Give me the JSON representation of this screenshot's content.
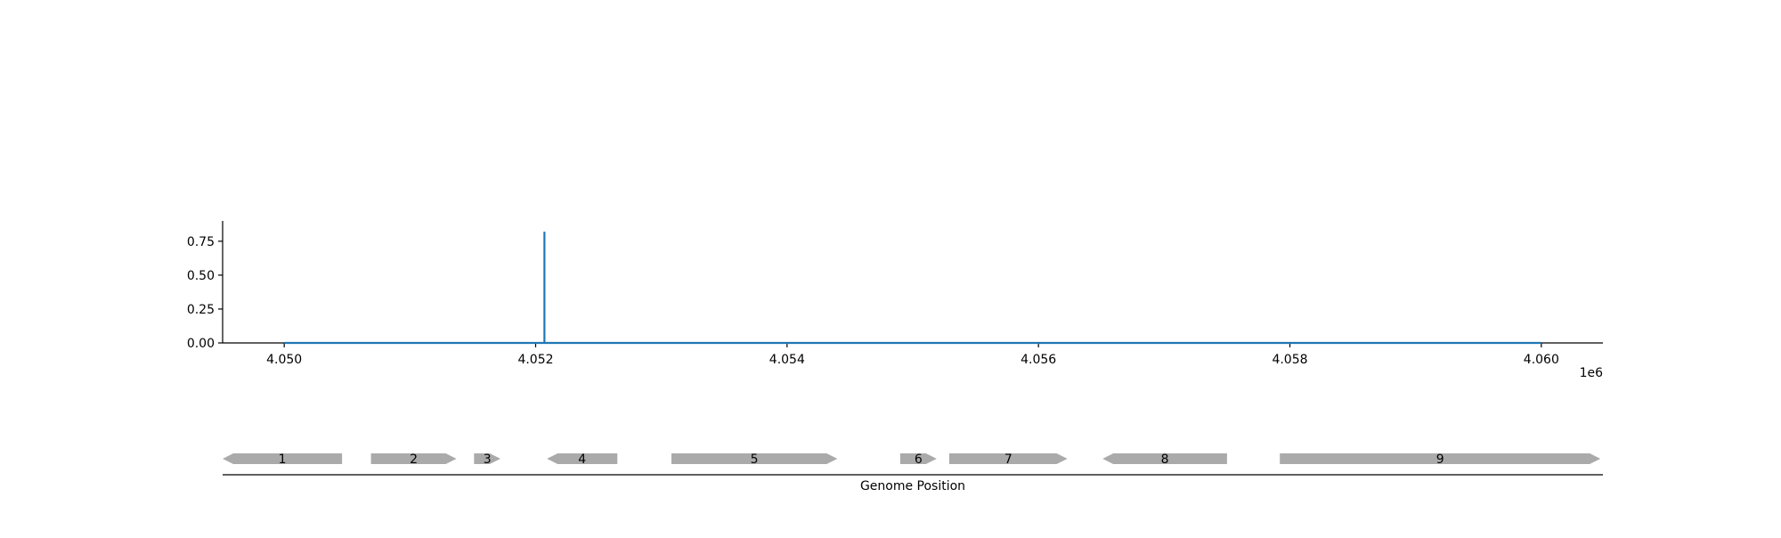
{
  "chart_data": [
    {
      "type": "line",
      "title": "",
      "xlabel": "",
      "ylabel": "",
      "x_offset_label": "1e6",
      "xlim": [
        4.04951,
        4.06049
      ],
      "ylim": [
        0.0,
        0.9
      ],
      "x_ticks": [
        4.05,
        4.052,
        4.054,
        4.056,
        4.058,
        4.06
      ],
      "x_tick_labels": [
        "4.050",
        "4.052",
        "4.054",
        "4.056",
        "4.058",
        "4.060"
      ],
      "y_ticks": [
        0.0,
        0.25,
        0.5,
        0.75
      ],
      "y_tick_labels": [
        "0.00",
        "0.25",
        "0.50",
        "0.75"
      ],
      "grid": false,
      "series": [
        {
          "color": "#1f77b4",
          "x": [
            4.05,
            4.05207,
            4.05207,
            4.05207,
            4.05208,
            4.06
          ],
          "y": [
            0.0,
            0.0,
            0.82,
            0.0,
            0.0,
            0.0
          ]
        }
      ]
    },
    {
      "type": "gene-track",
      "xlabel": "Genome Position",
      "xlim": [
        4.04951,
        4.06049
      ],
      "feature_color": "#aaaaaa",
      "features": [
        {
          "label": "1",
          "start": 4.04951,
          "end": 4.05046,
          "strand": -1
        },
        {
          "label": "2",
          "start": 4.05069,
          "end": 4.05137,
          "strand": 1
        },
        {
          "label": "3",
          "start": 4.05151,
          "end": 4.05172,
          "strand": 1
        },
        {
          "label": "4",
          "start": 4.05209,
          "end": 4.05265,
          "strand": -1
        },
        {
          "label": "5",
          "start": 4.05308,
          "end": 4.0544,
          "strand": 1
        },
        {
          "label": "6",
          "start": 4.0549,
          "end": 4.05519,
          "strand": 1
        },
        {
          "label": "7",
          "start": 4.05529,
          "end": 4.05623,
          "strand": 1
        },
        {
          "label": "8",
          "start": 4.05651,
          "end": 4.0575,
          "strand": -1
        },
        {
          "label": "9",
          "start": 4.05792,
          "end": 4.06047,
          "strand": 1
        }
      ]
    }
  ]
}
